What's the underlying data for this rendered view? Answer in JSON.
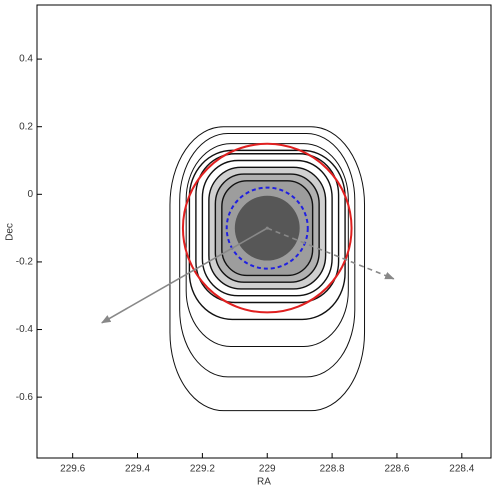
{
  "chart_data": {
    "type": "contour",
    "xlabel": "RA",
    "ylabel": "Dec",
    "xlim": [
      229.71,
      228.31
    ],
    "ylim": [
      -0.78,
      0.56
    ],
    "xticks": [
      229.6,
      229.4,
      229.2,
      229,
      228.8,
      228.6,
      228.4
    ],
    "yticks": [
      0.4,
      0.2,
      0,
      -0.2,
      -0.4,
      -0.6
    ],
    "center": [
      229.0,
      -0.1
    ],
    "contours": [
      {
        "rx": 0.3,
        "ry": 0.42,
        "dy": -0.12
      },
      {
        "rx": 0.27,
        "ry": 0.36,
        "dy": -0.08
      },
      {
        "rx": 0.25,
        "ry": 0.3,
        "dy": -0.05
      },
      {
        "rx": 0.24,
        "ry": 0.25,
        "dy": -0.02
      },
      {
        "rx": 0.22,
        "ry": 0.22,
        "dy": 0
      },
      {
        "rx": 0.2,
        "ry": 0.2,
        "dy": 0
      },
      {
        "rx": 0.18,
        "ry": 0.18,
        "dy": 0
      },
      {
        "rx": 0.16,
        "ry": 0.16,
        "dy": 0
      },
      {
        "rx": 0.14,
        "ry": 0.14,
        "dy": 0
      }
    ],
    "core_radius": 0.1,
    "contour_color": "#111111",
    "circles": [
      {
        "radius": 0.26,
        "color": "#e02020",
        "dashed": false
      },
      {
        "radius": 0.125,
        "color": "#2020e0",
        "dashed": true
      }
    ],
    "arrows": [
      {
        "x": [
          229.0,
          229.51
        ],
        "y": [
          -0.1,
          -0.38
        ],
        "dashed": false
      },
      {
        "x": [
          229.0,
          228.61
        ],
        "y": [
          -0.1,
          -0.25
        ],
        "dashed": true
      }
    ],
    "arrow_color": "#888888"
  }
}
